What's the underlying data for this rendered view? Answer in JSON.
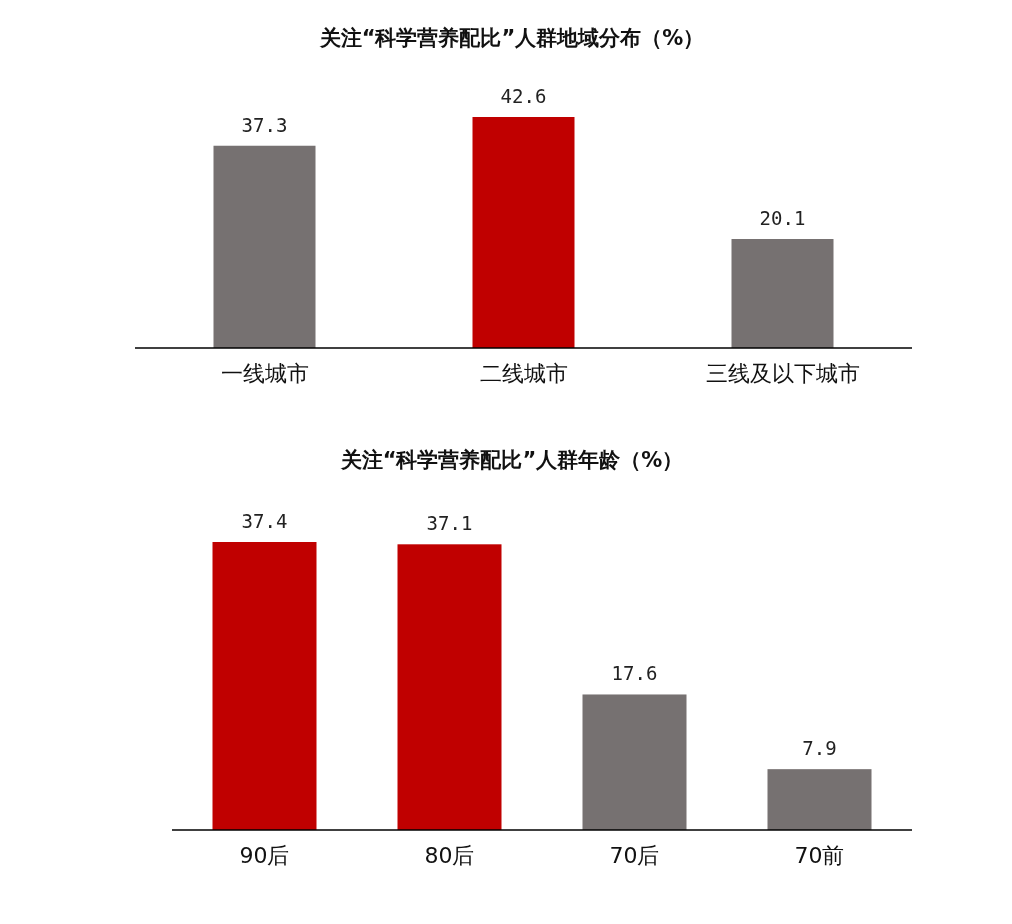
{
  "chart_data": [
    {
      "type": "bar",
      "title": "关注“科学营养配比”人群地域分布（%）",
      "categories": [
        "一线城市",
        "二线城市",
        "三线及以下城市"
      ],
      "values": [
        37.3,
        42.6,
        20.1
      ],
      "colors": [
        "#767171",
        "#c00000",
        "#767171"
      ],
      "data_labels": true
    },
    {
      "type": "bar",
      "title": "关注“科学营养配比”人群年龄（%）",
      "categories": [
        "90后",
        "80后",
        "70后",
        "70前"
      ],
      "values": [
        37.4,
        37.1,
        17.6,
        7.9
      ],
      "colors": [
        "#c00000",
        "#c00000",
        "#767171",
        "#767171"
      ],
      "data_labels": true
    }
  ]
}
